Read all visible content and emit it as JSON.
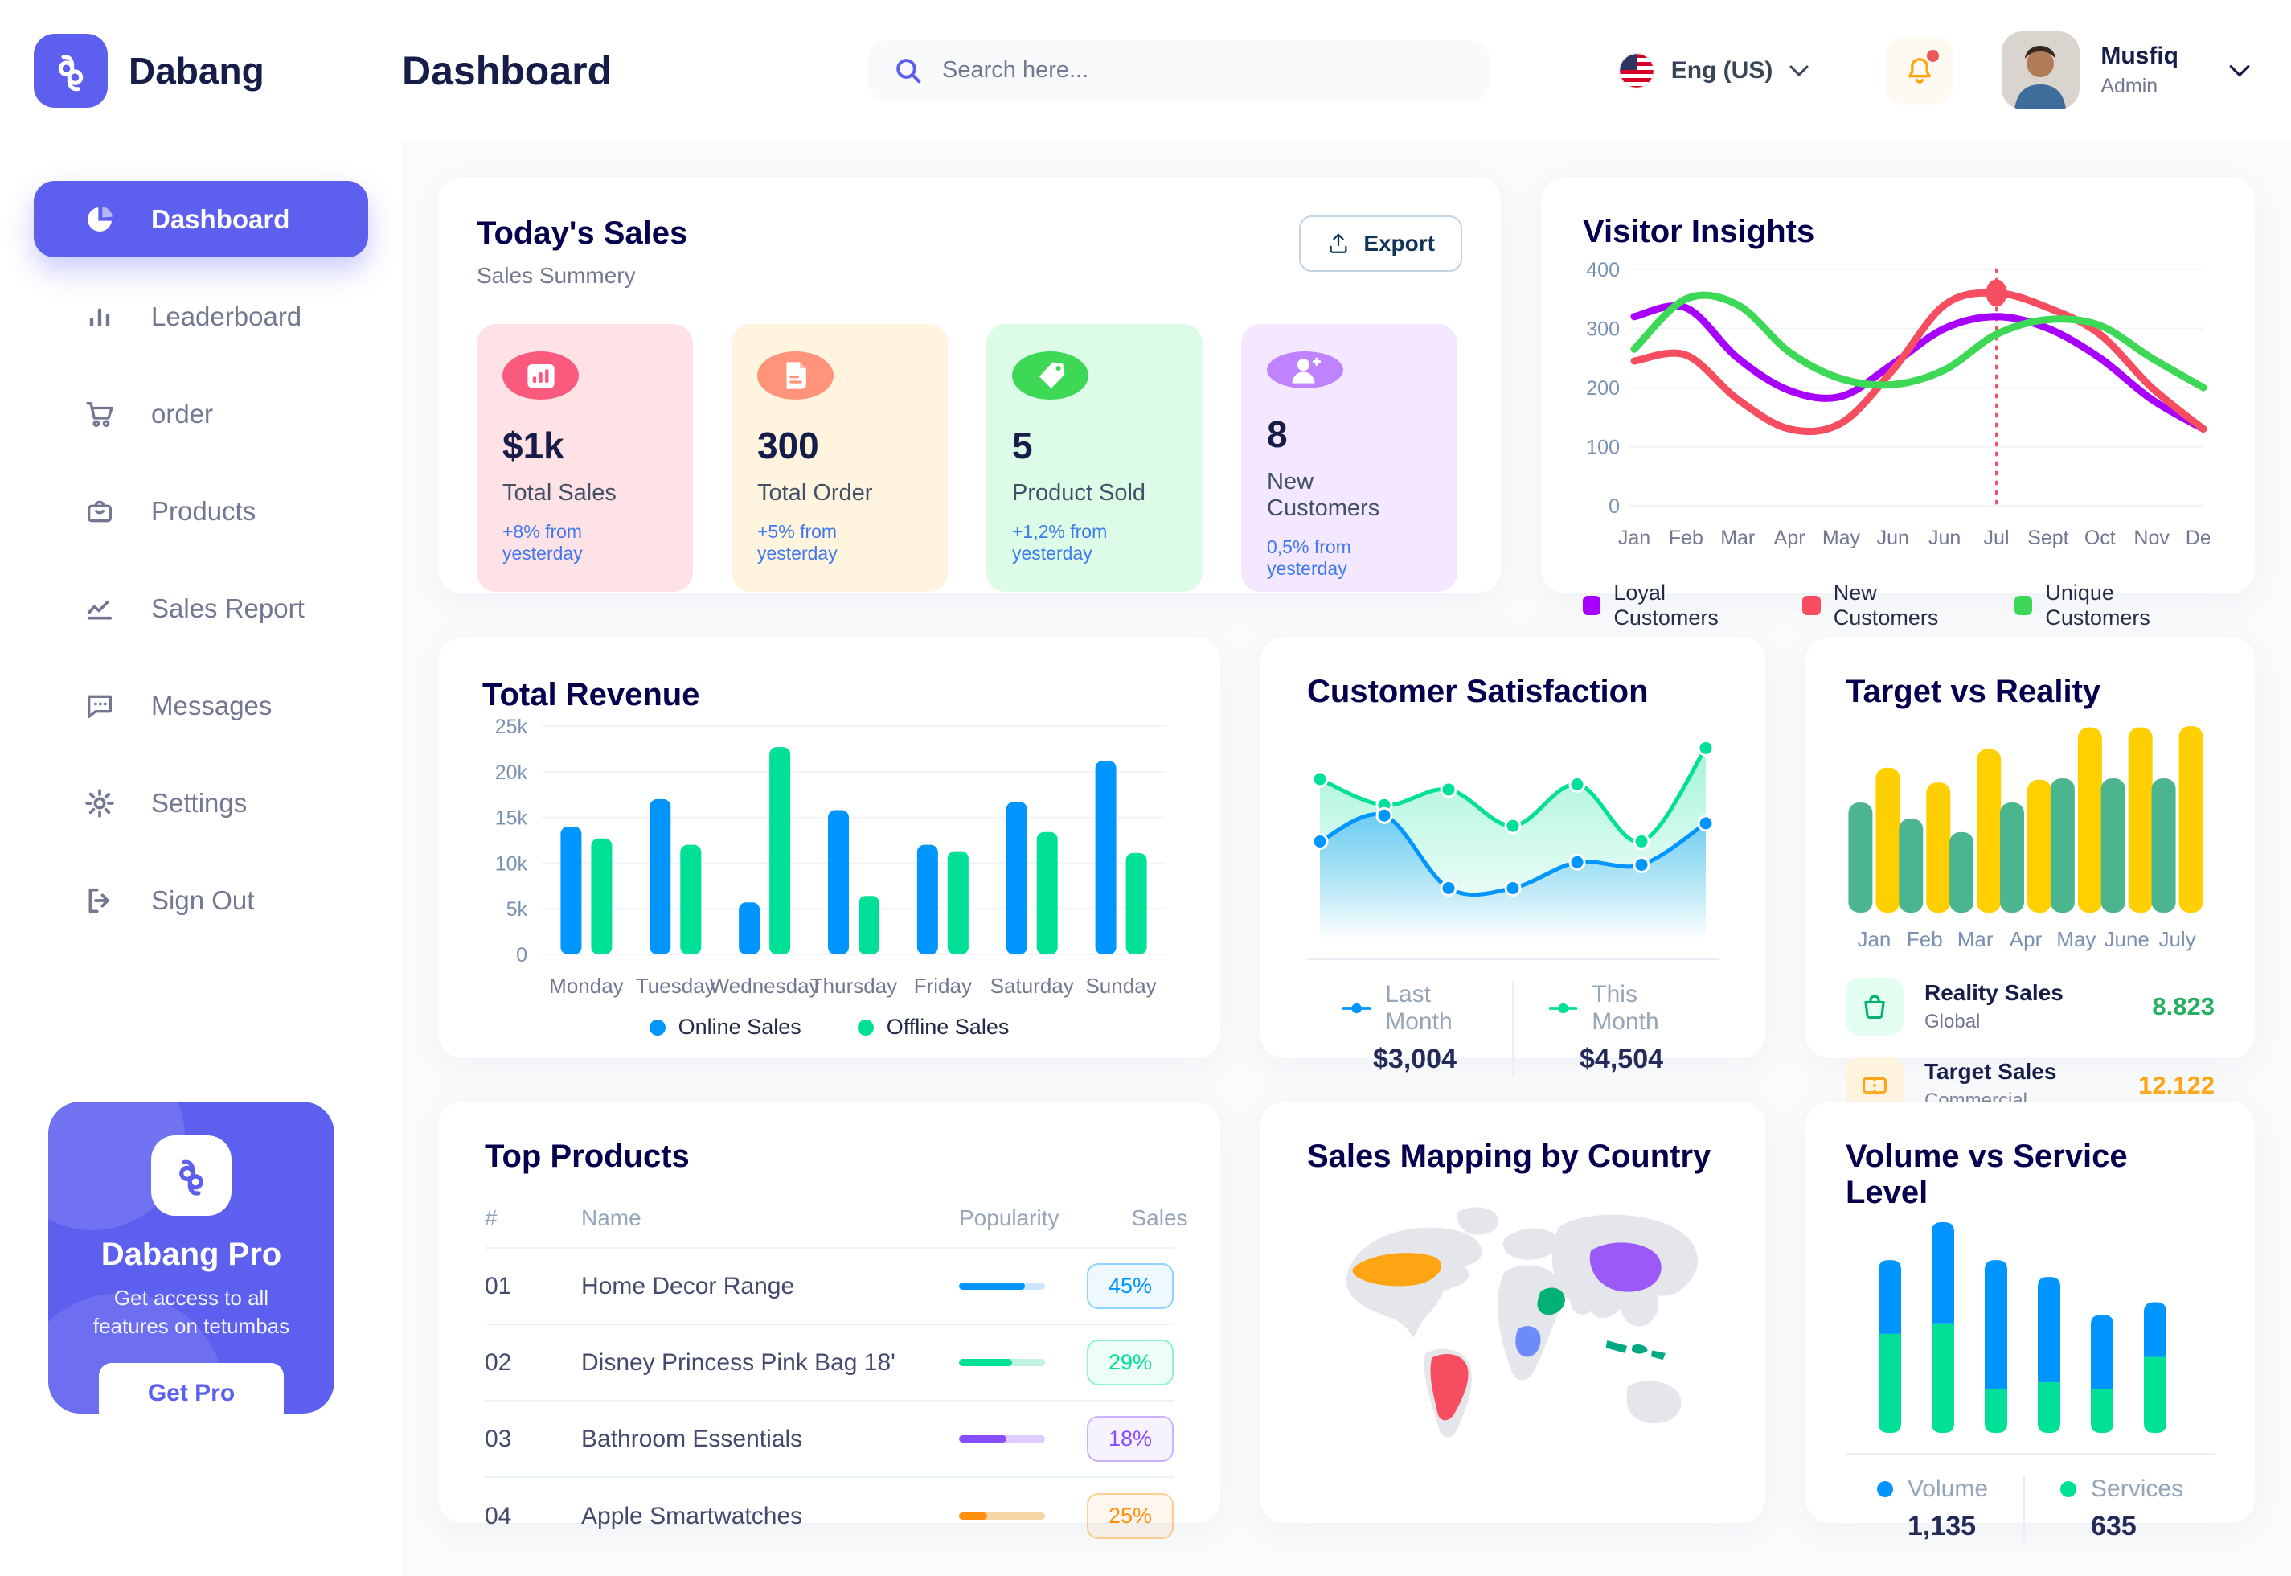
{
  "theme": {
    "primary": "#5D5FEF",
    "navy": "#05004E",
    "gray": "#737791",
    "blue": "#0095FF",
    "green": "#00E096"
  },
  "brand": {
    "name": "Dabang"
  },
  "header": {
    "page_title": "Dashboard",
    "search_placeholder": "Search here...",
    "language": "Eng (US)",
    "user": {
      "name": "Musfiq",
      "role": "Admin"
    }
  },
  "sidebar": {
    "items": [
      {
        "label": "Dashboard",
        "icon": "pie-chart-icon",
        "active": true
      },
      {
        "label": "Leaderboard",
        "icon": "bar-chart-icon",
        "active": false
      },
      {
        "label": "order",
        "icon": "cart-icon",
        "active": false
      },
      {
        "label": "Products",
        "icon": "bag-icon",
        "active": false
      },
      {
        "label": "Sales Report",
        "icon": "line-chart-icon",
        "active": false
      },
      {
        "label": "Messages",
        "icon": "chat-icon",
        "active": false
      },
      {
        "label": "Settings",
        "icon": "gear-icon",
        "active": false
      },
      {
        "label": "Sign Out",
        "icon": "sign-out-icon",
        "active": false
      }
    ],
    "pro_card": {
      "title": "Dabang Pro",
      "subtitle": "Get access to all features on tetumbas",
      "button_label": "Get Pro"
    }
  },
  "today_sales": {
    "title": "Today's Sales",
    "subtitle": "Sales Summery",
    "export_label": "Export",
    "stats": [
      {
        "value": "$1k",
        "label": "Total Sales",
        "change": "+8% from yesterday",
        "bg": "#FFE2E5",
        "icon_bg": "#FA5A7D",
        "icon": "chart-card-icon"
      },
      {
        "value": "300",
        "label": "Total Order",
        "change": "+5% from yesterday",
        "bg": "#FFF4DE",
        "icon_bg": "#FF947A",
        "icon": "receipt-icon"
      },
      {
        "value": "5",
        "label": "Product Sold",
        "change": "+1,2% from yesterday",
        "bg": "#DCFCE7",
        "icon_bg": "#3CD856",
        "icon": "tag-icon"
      },
      {
        "value": "8",
        "label": "New Customers",
        "change": "0,5% from yesterday",
        "bg": "#F3E8FF",
        "icon_bg": "#BF83FF",
        "icon": "user-plus-icon"
      }
    ]
  },
  "top_products": {
    "title": "Top Products",
    "headers": [
      "#",
      "Name",
      "Popularity",
      "Sales"
    ],
    "rows": [
      {
        "num": "01",
        "name": "Home Decor Range",
        "popularity_pct": 77,
        "sales": "45%",
        "color": "#0095FF",
        "track": "#CDE4FF"
      },
      {
        "num": "02",
        "name": "Disney Princess Pink Bag 18'",
        "popularity_pct": 62,
        "sales": "29%",
        "color": "#00E096",
        "track": "#BFF3E0"
      },
      {
        "num": "03",
        "name": "Bathroom Essentials",
        "popularity_pct": 55,
        "sales": "18%",
        "color": "#884DFF",
        "track": "#DCCCFF"
      },
      {
        "num": "04",
        "name": "Apple Smartwatches",
        "popularity_pct": 33,
        "sales": "25%",
        "color": "#FF8F0D",
        "track": "#F8D5A5"
      }
    ]
  },
  "sales_map": {
    "title": "Sales Mapping by Country",
    "regions": [
      {
        "name": "United States",
        "color": "#FFA412"
      },
      {
        "name": "Brazil",
        "color": "#F64E60"
      },
      {
        "name": "Saudi Arabia",
        "color": "#00B074"
      },
      {
        "name": "DR Congo",
        "color": "#6E8BFB"
      },
      {
        "name": "China",
        "color": "#9B5AF7"
      },
      {
        "name": "Indonesia",
        "color": "#00A982"
      }
    ]
  },
  "chart_data": [
    {
      "id": "visitor_insights",
      "type": "line",
      "title": "Visitor Insights",
      "x": [
        "Jan",
        "Feb",
        "Mar",
        "Apr",
        "May",
        "Jun",
        "Jun",
        "Jul",
        "Sept",
        "Oct",
        "Nov",
        "Des"
      ],
      "ylim": [
        0,
        400
      ],
      "yticks": [
        0,
        100,
        200,
        300,
        400
      ],
      "legend_position": "bottom",
      "highlight": {
        "x_index": 7,
        "y": 360,
        "color": "#F64E60"
      },
      "series": [
        {
          "name": "Loyal Customers",
          "color": "#A700FF",
          "values": [
            320,
            335,
            250,
            195,
            185,
            240,
            300,
            320,
            300,
            250,
            180,
            130
          ]
        },
        {
          "name": "New Customers",
          "color": "#F64E60",
          "values": [
            245,
            255,
            180,
            130,
            140,
            230,
            340,
            360,
            335,
            290,
            200,
            130
          ]
        },
        {
          "name": "Unique Customers",
          "color": "#3CD856",
          "values": [
            265,
            350,
            340,
            260,
            215,
            205,
            230,
            290,
            315,
            305,
            250,
            200
          ]
        }
      ]
    },
    {
      "id": "total_revenue",
      "type": "bar",
      "title": "Total Revenue",
      "categories": [
        "Monday",
        "Tuesday",
        "Wednesday",
        "Thursday",
        "Friday",
        "Saturday",
        "Sunday"
      ],
      "ylim": [
        0,
        25000
      ],
      "yticks": [
        "0",
        "5k",
        "10k",
        "15k",
        "20k",
        "25k"
      ],
      "legend_position": "bottom",
      "series": [
        {
          "name": "Online Sales",
          "color": "#0095FF",
          "values": [
            14000,
            17000,
            5700,
            15800,
            12000,
            16700,
            21200
          ]
        },
        {
          "name": "Offline Sales",
          "color": "#00E096",
          "values": [
            12700,
            12000,
            22700,
            6400,
            11300,
            13400,
            11100
          ]
        }
      ]
    },
    {
      "id": "customer_satisfaction",
      "type": "area",
      "title": "Customer Satisfaction",
      "series": [
        {
          "name": "Last Month",
          "color": "#0095FF",
          "total": "$3,004",
          "values": [
            58,
            68,
            40,
            40,
            50,
            49,
            65
          ]
        },
        {
          "name": "This Month",
          "color": "#00E096",
          "total": "$4,504",
          "values": [
            82,
            72,
            78,
            64,
            80,
            58,
            94
          ]
        }
      ]
    },
    {
      "id": "target_vs_reality",
      "type": "bar",
      "title": "Target vs Reality",
      "categories": [
        "Jan",
        "Feb",
        "Mar",
        "Apr",
        "May",
        "June",
        "July"
      ],
      "ylim": [
        0,
        14.5
      ],
      "series": [
        {
          "name": "Reality Sales",
          "color": "#4AB58E",
          "values": [
            8.2,
            7,
            6,
            8.2,
            10,
            10,
            10
          ]
        },
        {
          "name": "Target Sales",
          "color": "#FFCF00",
          "values": [
            10.8,
            9.7,
            12.2,
            9.9,
            13.8,
            13.8,
            13.9
          ]
        }
      ],
      "legend": [
        {
          "label": "Reality Sales",
          "sublabel": "Global",
          "value": "8.823",
          "value_color": "#27AE60",
          "tile_bg": "#E2FFF1",
          "icon": "bag-icon"
        },
        {
          "label": "Target Sales",
          "sublabel": "Commercial",
          "value": "12.122",
          "value_color": "#FFA412",
          "tile_bg": "#FFF4DE",
          "icon": "ticket-icon"
        }
      ]
    },
    {
      "id": "volume_vs_service_level",
      "type": "stacked-bar",
      "title": "Volume vs Service Level",
      "series": [
        {
          "name": "Volume",
          "color": "#0095FF",
          "total": "1,135",
          "values": [
            35,
            48,
            61,
            50,
            35,
            26
          ]
        },
        {
          "name": "Services",
          "color": "#00E096",
          "total": "635",
          "values": [
            47,
            52,
            21,
            24,
            21,
            36
          ]
        }
      ]
    }
  ]
}
